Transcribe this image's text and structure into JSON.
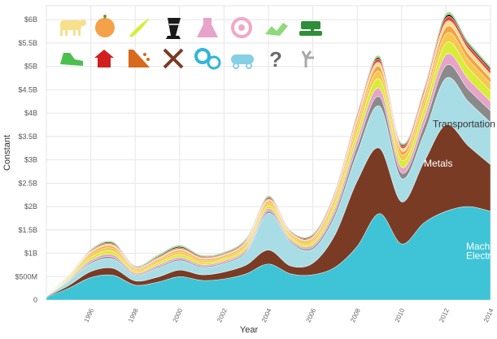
{
  "chart_data": {
    "type": "area",
    "stacked": true,
    "smoothed": true,
    "ylabel": "Constant",
    "xlabel": "Year",
    "xlim": [
      1994,
      2014
    ],
    "ylim": [
      0,
      6300000000
    ],
    "grid": true,
    "x_ticks": [
      {
        "value": 1996,
        "label": "1996"
      },
      {
        "value": 1998,
        "label": "1998"
      },
      {
        "value": 2000,
        "label": "2000"
      },
      {
        "value": 2002,
        "label": "2002"
      },
      {
        "value": 2004,
        "label": "2004"
      },
      {
        "value": 2006,
        "label": "2006"
      },
      {
        "value": 2008,
        "label": "2008"
      },
      {
        "value": 2010,
        "label": "2010"
      },
      {
        "value": 2012,
        "label": "2012"
      },
      {
        "value": 2014,
        "label": "2014"
      }
    ],
    "y_ticks": [
      {
        "value": 0,
        "label": "0"
      },
      {
        "value": 500000000,
        "label": "$500M"
      },
      {
        "value": 1000000000,
        "label": "$1B"
      },
      {
        "value": 1500000000,
        "label": "$1.5B"
      },
      {
        "value": 2000000000,
        "label": "$2B"
      },
      {
        "value": 2500000000,
        "label": "$2.5B"
      },
      {
        "value": 3000000000,
        "label": "$3B"
      },
      {
        "value": 3500000000,
        "label": "$3.5B"
      },
      {
        "value": 4000000000,
        "label": "$4B"
      },
      {
        "value": 4500000000,
        "label": "$4.5B"
      },
      {
        "value": 5000000000,
        "label": "$5B"
      },
      {
        "value": 5500000000,
        "label": "$5.5B"
      },
      {
        "value": 6000000000,
        "label": "$6B"
      }
    ],
    "x": [
      1994,
      1995,
      1996,
      1997,
      1998,
      1999,
      2000,
      2001,
      2002,
      2003,
      2004,
      2005,
      2006,
      2007,
      2008,
      2009,
      2010,
      2011,
      2012,
      2013,
      2014
    ],
    "series": [
      {
        "name": "Machinery",
        "color": "#3ec4d6",
        "values": [
          60000000,
          250000000,
          480000000,
          530000000,
          320000000,
          380000000,
          500000000,
          420000000,
          450000000,
          560000000,
          770000000,
          560000000,
          540000000,
          700000000,
          1150000000,
          1850000000,
          1200000000,
          1650000000,
          1900000000,
          2000000000,
          1900000000
        ]
      },
      {
        "name": "Metals",
        "color": "#7a3b25",
        "values": [
          10000000,
          60000000,
          130000000,
          150000000,
          90000000,
          110000000,
          140000000,
          120000000,
          150000000,
          190000000,
          300000000,
          170000000,
          250000000,
          700000000,
          1400000000,
          1400000000,
          900000000,
          1300000000,
          1850000000,
          1300000000,
          1000000000
        ]
      },
      {
        "name": "Transportation",
        "color": "#a8dde6",
        "values": [
          10000000,
          90000000,
          170000000,
          200000000,
          120000000,
          190000000,
          200000000,
          160000000,
          180000000,
          270000000,
          790000000,
          500000000,
          300000000,
          400000000,
          600000000,
          900000000,
          500000000,
          600000000,
          1000000000,
          950000000,
          900000000
        ]
      },
      {
        "name": "",
        "color": "#8a8a8a",
        "values": [
          3000000,
          15000000,
          30000000,
          35000000,
          20000000,
          25000000,
          30000000,
          25000000,
          25000000,
          30000000,
          40000000,
          30000000,
          40000000,
          80000000,
          150000000,
          200000000,
          120000000,
          180000000,
          270000000,
          260000000,
          250000000
        ]
      },
      {
        "name": "",
        "color": "#e7a3c9",
        "values": [
          3000000,
          20000000,
          45000000,
          55000000,
          30000000,
          40000000,
          45000000,
          35000000,
          35000000,
          45000000,
          60000000,
          40000000,
          50000000,
          90000000,
          150000000,
          180000000,
          120000000,
          170000000,
          230000000,
          220000000,
          200000000
        ]
      },
      {
        "name": "",
        "color": "#d9ec3a",
        "values": [
          5000000,
          25000000,
          60000000,
          70000000,
          35000000,
          45000000,
          60000000,
          45000000,
          40000000,
          50000000,
          60000000,
          45000000,
          55000000,
          100000000,
          160000000,
          200000000,
          150000000,
          180000000,
          250000000,
          240000000,
          220000000
        ]
      },
      {
        "name": "",
        "color": "#f7c84b",
        "values": [
          5000000,
          25000000,
          55000000,
          65000000,
          35000000,
          45000000,
          55000000,
          45000000,
          40000000,
          50000000,
          60000000,
          45000000,
          55000000,
          90000000,
          140000000,
          160000000,
          120000000,
          150000000,
          200000000,
          180000000,
          170000000
        ]
      },
      {
        "name": "",
        "color": "#f3a24a",
        "values": [
          4000000,
          15000000,
          35000000,
          40000000,
          25000000,
          30000000,
          35000000,
          30000000,
          30000000,
          35000000,
          40000000,
          30000000,
          35000000,
          60000000,
          90000000,
          110000000,
          80000000,
          100000000,
          140000000,
          120000000,
          110000000
        ]
      },
      {
        "name": "",
        "color": "#f6e08c",
        "values": [
          3000000,
          15000000,
          30000000,
          35000000,
          20000000,
          25000000,
          30000000,
          25000000,
          25000000,
          30000000,
          35000000,
          25000000,
          30000000,
          50000000,
          70000000,
          80000000,
          60000000,
          80000000,
          110000000,
          100000000,
          90000000
        ]
      },
      {
        "name": "",
        "color": "#e8453c",
        "values": [
          2000000,
          8000000,
          20000000,
          25000000,
          15000000,
          20000000,
          25000000,
          20000000,
          20000000,
          25000000,
          30000000,
          20000000,
          25000000,
          40000000,
          60000000,
          70000000,
          50000000,
          70000000,
          90000000,
          80000000,
          80000000
        ]
      },
      {
        "name": "",
        "color": "#1a1a1a",
        "values": [
          1000000,
          6000000,
          15000000,
          20000000,
          12000000,
          20000000,
          25000000,
          15000000,
          15000000,
          20000000,
          20000000,
          15000000,
          20000000,
          25000000,
          30000000,
          35000000,
          30000000,
          35000000,
          45000000,
          40000000,
          40000000
        ]
      },
      {
        "name": "",
        "color": "#8fd97a",
        "values": [
          1000000,
          8000000,
          20000000,
          25000000,
          15000000,
          30000000,
          30000000,
          20000000,
          20000000,
          25000000,
          25000000,
          15000000,
          20000000,
          25000000,
          35000000,
          40000000,
          30000000,
          35000000,
          50000000,
          45000000,
          40000000
        ]
      }
    ],
    "series_labels": [
      {
        "series": 0,
        "text": "Machinery",
        "x": 2012.9,
        "y": 1080000000,
        "color": "#ffffff"
      },
      {
        "series": 0,
        "text": "Electrical",
        "x": 2012.9,
        "y": 880000000,
        "color": "#ffffff"
      },
      {
        "series": 1,
        "text": "Metals",
        "x": 2011.0,
        "y": 2850000000,
        "color": "#ffffff"
      },
      {
        "series": 2,
        "text": "Transportation",
        "x": 2011.4,
        "y": 3700000000,
        "color": "#333333"
      }
    ],
    "legend": {
      "placement": "top-left",
      "icons": [
        {
          "name": "animal-icon",
          "color": "#f6e08c"
        },
        {
          "name": "vegetable-icon",
          "color": "#f3a24a"
        },
        {
          "name": "foodstuff-icon",
          "color": "#d9ec3a"
        },
        {
          "name": "mineral-icon",
          "color": "#1a1a1a"
        },
        {
          "name": "chemical-icon",
          "color": "#e7a3c9"
        },
        {
          "name": "plastic-icon",
          "color": "#f3a7c7"
        },
        {
          "name": "animal-hide-icon",
          "color": "#8fd97a"
        },
        {
          "name": "textile-icon",
          "color": "#2f8e3a"
        },
        {
          "name": "footwear-icon",
          "color": "#4cbf4f"
        },
        {
          "name": "stone-icon",
          "color": "#d11f1f"
        },
        {
          "name": "glass-icon",
          "color": "#d76a1c"
        },
        {
          "name": "metals-icon",
          "color": "#7a3b25"
        },
        {
          "name": "machine-icon",
          "color": "#31b6d8"
        },
        {
          "name": "transport-icon",
          "color": "#85d0e4"
        },
        {
          "name": "unknown-icon",
          "color": "#6a6a6a"
        },
        {
          "name": "misc-icon",
          "color": "#a8a8a8"
        }
      ]
    }
  }
}
